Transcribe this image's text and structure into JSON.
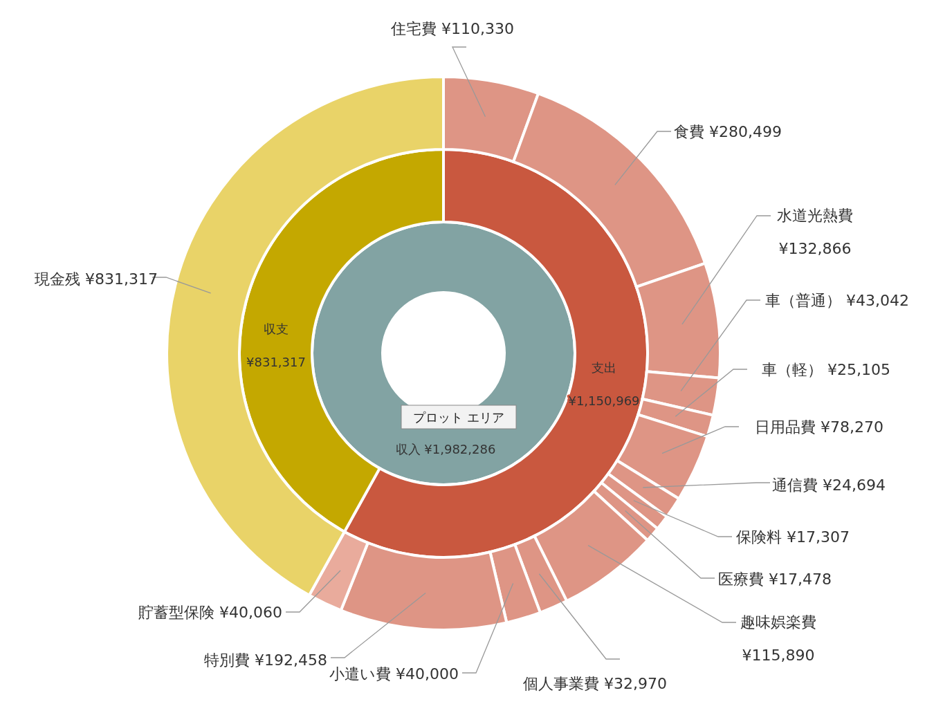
{
  "chart_data": [
    {
      "type": "donut",
      "annotations": [
        "プロット エリア"
      ],
      "categories": [
        "収入"
      ],
      "values": [
        1982286
      ],
      "colors": [
        "#82a3a3"
      ],
      "value_labels": [
        "¥1,982,286"
      ]
    },
    {
      "type": "donut",
      "categories": [
        "支出",
        "収支"
      ],
      "values": [
        1150969,
        831317
      ],
      "colors": [
        "#c9583f",
        "#c4a800"
      ],
      "value_labels": [
        "¥1,150,969",
        "¥831,317"
      ]
    },
    {
      "type": "donut",
      "categories": [
        "住宅費",
        "食費",
        "水道光熱費",
        "車（普通）",
        "車（軽）",
        "日用品費",
        "通信費",
        "保険料",
        "医療費",
        "趣味娯楽費",
        "個人事業費",
        "小遣い費",
        "特別費",
        "貯蓄型保険",
        "現金残"
      ],
      "values": [
        110330,
        280499,
        132866,
        43042,
        25105,
        78270,
        24694,
        17307,
        17478,
        115890,
        32970,
        40000,
        192458,
        40060,
        831317
      ],
      "colors": [
        "#de9585",
        "#de9585",
        "#de9585",
        "#de9585",
        "#de9585",
        "#de9585",
        "#de9585",
        "#de9585",
        "#de9585",
        "#de9585",
        "#de9585",
        "#de9585",
        "#de9585",
        "#e9ab9c",
        "#e9d368"
      ],
      "value_labels": [
        "¥110,330",
        "¥280,499",
        "¥132,866",
        "¥43,042",
        "¥25,105",
        "¥78,270",
        "¥24,694",
        "¥17,307",
        "¥17,478",
        "¥115,890",
        "¥32,970",
        "¥40,000",
        "¥192,458",
        "¥40,060",
        "¥831,317"
      ]
    }
  ]
}
